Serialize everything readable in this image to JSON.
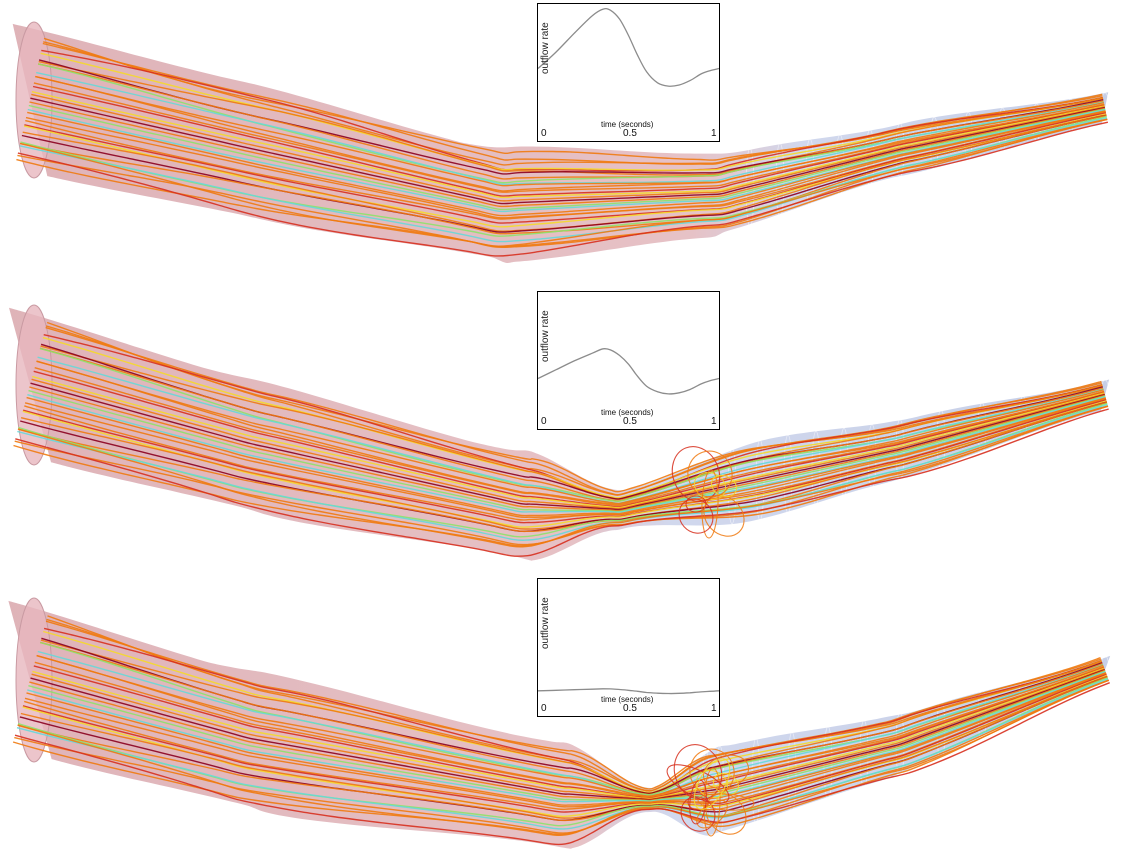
{
  "chart_data": [
    {
      "type": "line",
      "panel": "vessel-mild",
      "ylabel": "outflow rate",
      "xlabel": "time (seconds)",
      "xticks": [
        "0",
        "0.5",
        "1"
      ],
      "xlim": [
        0,
        1
      ],
      "ylim": [
        0,
        1
      ],
      "series": [
        {
          "x": [
            0,
            0.1,
            0.2,
            0.3,
            0.36,
            0.4,
            0.45,
            0.5,
            0.55,
            0.6,
            0.66,
            0.72,
            0.78,
            0.84,
            0.9,
            0.95,
            1.0
          ],
          "y": [
            0.45,
            0.6,
            0.77,
            0.93,
            0.99,
            0.98,
            0.9,
            0.75,
            0.57,
            0.42,
            0.32,
            0.29,
            0.3,
            0.34,
            0.4,
            0.43,
            0.45
          ]
        }
      ],
      "line_color": "#8c8c8c"
    },
    {
      "type": "line",
      "panel": "vessel-moderate",
      "ylabel": "outflow rate",
      "xlabel": "time (seconds)",
      "xticks": [
        "0",
        "0.5",
        "1"
      ],
      "xlim": [
        0,
        1
      ],
      "ylim": [
        0,
        1
      ],
      "series": [
        {
          "x": [
            0,
            0.1,
            0.2,
            0.3,
            0.36,
            0.4,
            0.45,
            0.5,
            0.55,
            0.6,
            0.66,
            0.72,
            0.78,
            0.84,
            0.9,
            0.95,
            1.0
          ],
          "y": [
            0.25,
            0.33,
            0.41,
            0.48,
            0.52,
            0.51,
            0.46,
            0.38,
            0.27,
            0.18,
            0.13,
            0.11,
            0.12,
            0.15,
            0.2,
            0.23,
            0.25
          ]
        }
      ],
      "line_color": "#8c8c8c"
    },
    {
      "type": "line",
      "panel": "vessel-severe",
      "ylabel": "outflow rate",
      "xlabel": "time (seconds)",
      "xticks": [
        "0",
        "0.5",
        "1"
      ],
      "xlim": [
        0,
        1
      ],
      "ylim": [
        0,
        1
      ],
      "series": [
        {
          "x": [
            0,
            0.1,
            0.2,
            0.3,
            0.36,
            0.4,
            0.45,
            0.5,
            0.55,
            0.6,
            0.66,
            0.72,
            0.78,
            0.84,
            0.9,
            0.95,
            1.0
          ],
          "y": [
            0.02,
            0.025,
            0.03,
            0.035,
            0.038,
            0.037,
            0.032,
            0.025,
            0.015,
            0.005,
            -0.002,
            -0.005,
            -0.003,
            0.002,
            0.01,
            0.015,
            0.02
          ]
        }
      ],
      "line_color": "#8c8c8c"
    }
  ],
  "colors": {
    "vessel_proximal": "#d9a6ac",
    "vessel_distal": "#c9d1ea",
    "streamline_main": "#f07a10",
    "streamline_hot": "#d7301f",
    "streamline_dark": "#8b0020",
    "streamline_yellow": "#f5d92a",
    "streamline_green": "#8de26a",
    "streamline_cyan": "#66d8d8"
  }
}
